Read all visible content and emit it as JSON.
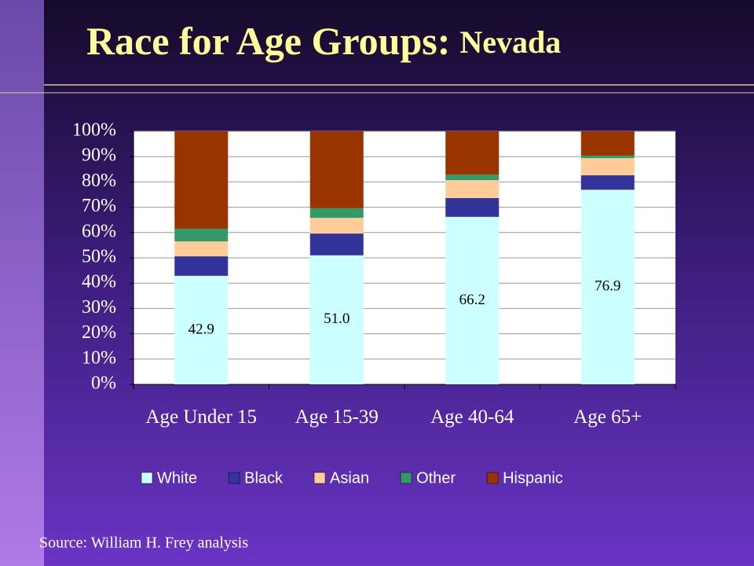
{
  "chart_data": {
    "type": "stacked_bar",
    "title": [
      "Race for Age Groups:",
      "Nevada"
    ],
    "categories": [
      "Age Under 15",
      "Age 15-39",
      "Age 40-64",
      "Age 65+"
    ],
    "series": [
      {
        "name": "White",
        "color": "#ccffff",
        "values": [
          42.9,
          51.0,
          66.2,
          76.9
        ],
        "value_labels": [
          "42.9",
          "51.0",
          "66.2",
          "76.9"
        ]
      },
      {
        "name": "Black",
        "color": "#333399",
        "values": [
          7.7,
          8.6,
          7.4,
          5.7
        ]
      },
      {
        "name": "Asian",
        "color": "#ffcc99",
        "values": [
          5.9,
          6.2,
          7.1,
          6.8
        ]
      },
      {
        "name": "Other",
        "color": "#339966",
        "values": [
          5.0,
          3.8,
          2.2,
          1.0
        ]
      },
      {
        "name": "Hispanic",
        "color": "#993300",
        "values": [
          38.5,
          30.4,
          17.1,
          9.6
        ]
      }
    ],
    "ylim": [
      0,
      100
    ],
    "yticks": [
      {
        "value": 0,
        "label": "0%"
      },
      {
        "value": 10,
        "label": "10%"
      },
      {
        "value": 20,
        "label": "20%"
      },
      {
        "value": 30,
        "label": "30%"
      },
      {
        "value": 40,
        "label": "40%"
      },
      {
        "value": 50,
        "label": "50%"
      },
      {
        "value": 60,
        "label": "60%"
      },
      {
        "value": 70,
        "label": "70%"
      },
      {
        "value": 80,
        "label": "80%"
      },
      {
        "value": 90,
        "label": "90%"
      },
      {
        "value": 100,
        "label": "100%"
      }
    ],
    "grid": true,
    "legend": "bottom",
    "source": "Source: William H. Frey analysis"
  }
}
